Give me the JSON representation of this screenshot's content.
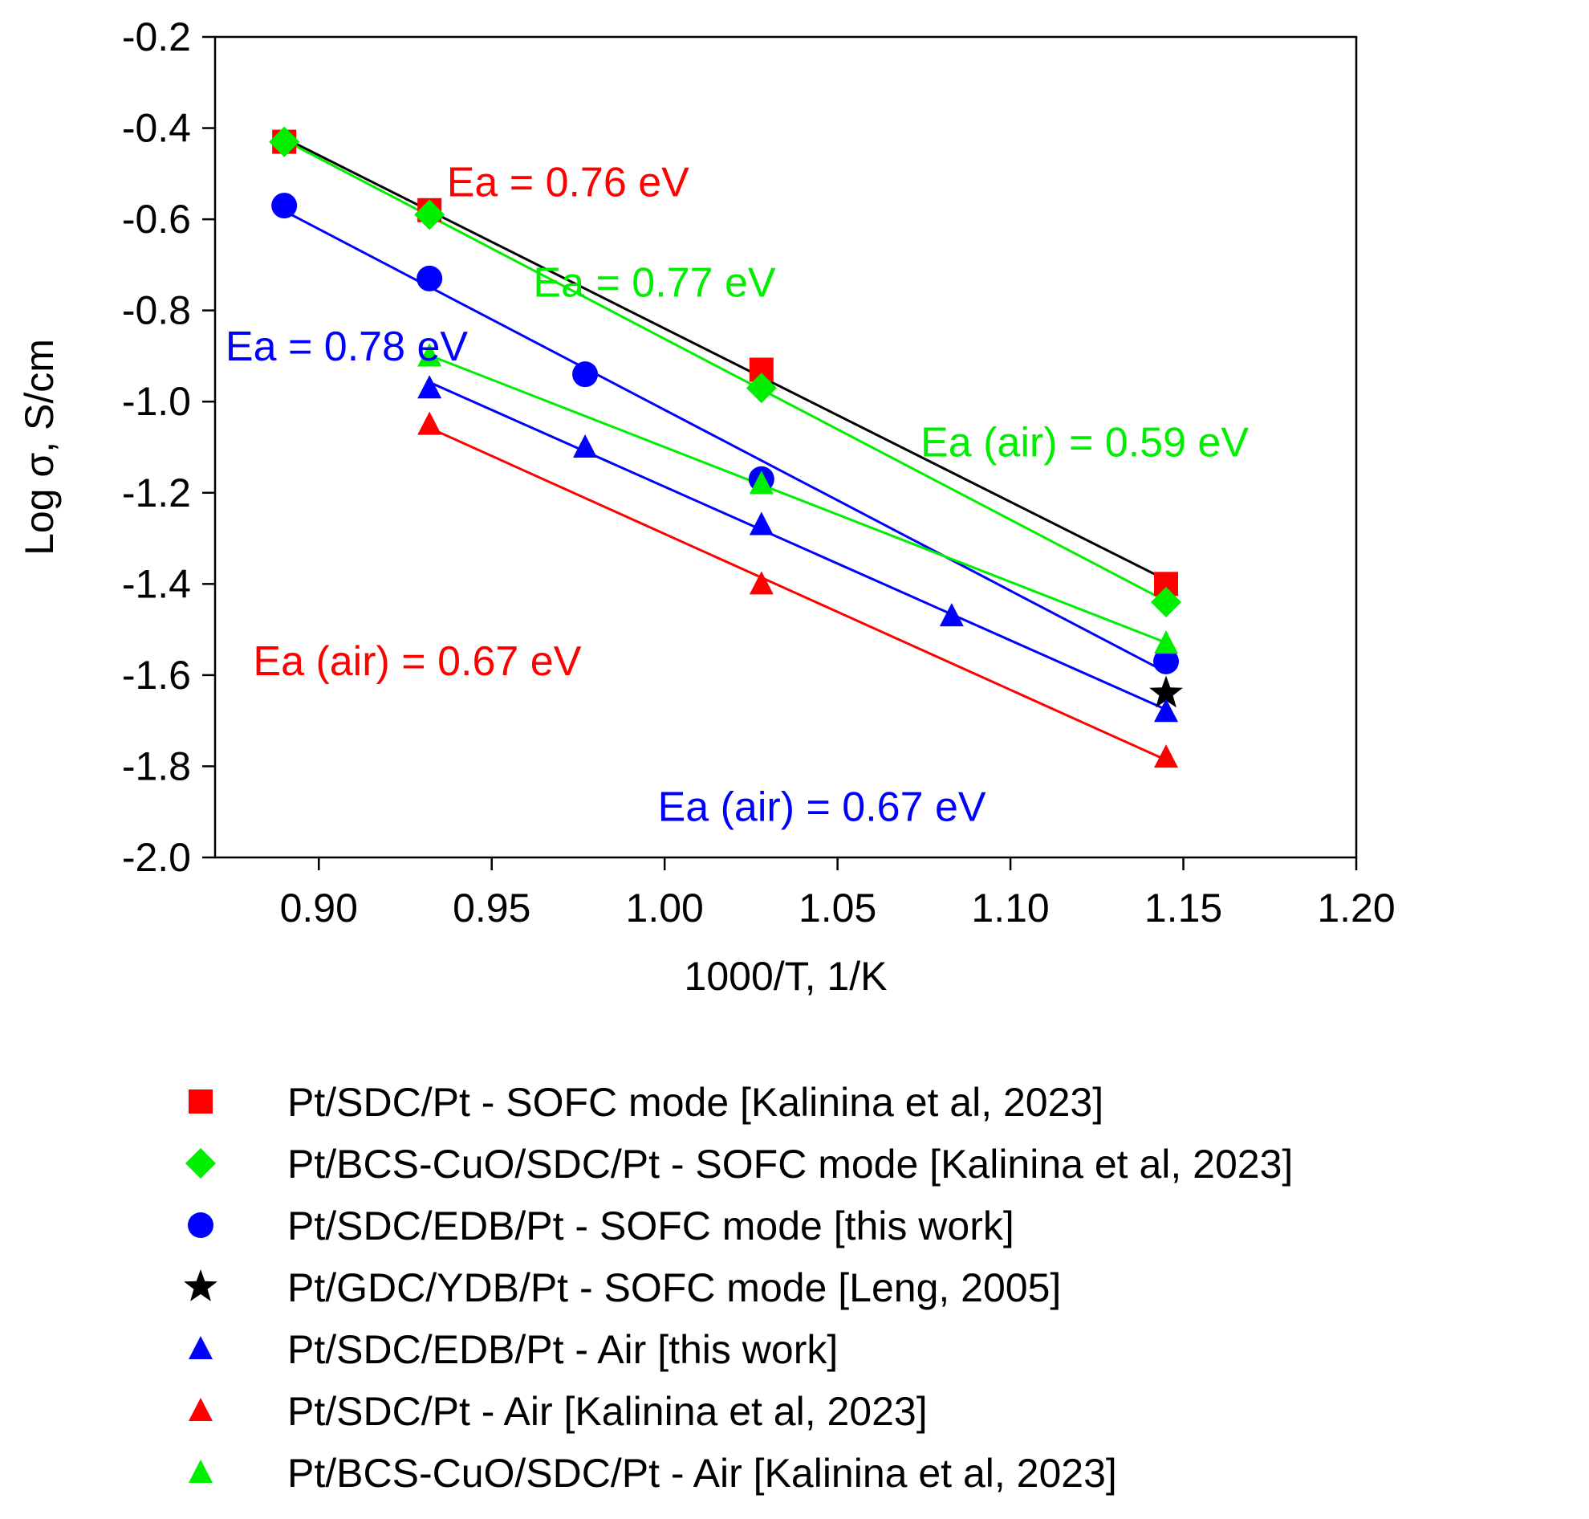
{
  "chart_data": {
    "type": "scatter",
    "xlabel": "1000/T, 1/K",
    "ylabel": "Log σ, S/cm",
    "xlim": [
      0.87,
      1.2
    ],
    "ylim": [
      -2.0,
      -0.2
    ],
    "x_ticks": [
      "0.90",
      "0.95",
      "1.00",
      "1.05",
      "1.10",
      "1.15",
      "1.20"
    ],
    "y_ticks": [
      "-2.0",
      "-1.8",
      "-1.6",
      "-1.4",
      "-1.2",
      "-1.0",
      "-0.8",
      "-0.6",
      "-0.4",
      "-0.2"
    ],
    "grid": false,
    "legend_position": "bottom",
    "series": [
      {
        "name": "Pt/SDC/Pt - SOFC mode [Kalinina et al, 2023]",
        "marker": "square",
        "color": "#ff0000",
        "x": [
          0.89,
          0.932,
          1.028,
          1.145
        ],
        "y": [
          -0.43,
          -0.58,
          -0.93,
          -1.4
        ],
        "fit": true,
        "fit_color": "#000000"
      },
      {
        "name": "Pt/BCS-CuO/SDC/Pt - SOFC mode [Kalinina et al, 2023]",
        "marker": "diamond",
        "color": "#00ee00",
        "x": [
          0.89,
          0.932,
          1.028,
          1.145
        ],
        "y": [
          -0.43,
          -0.59,
          -0.97,
          -1.44
        ],
        "fit": true,
        "fit_color": "#00ee00"
      },
      {
        "name": "Pt/SDC/EDB/Pt - SOFC mode [this work]",
        "marker": "circle",
        "color": "#0000ff",
        "x": [
          0.89,
          0.932,
          0.977,
          1.028,
          1.145
        ],
        "y": [
          -0.57,
          -0.73,
          -0.94,
          -1.17,
          -1.57
        ],
        "fit": true,
        "fit_color": "#0000ff"
      },
      {
        "name": "Pt/GDC/YDB/Pt - SOFC mode [Leng, 2005]",
        "marker": "star",
        "color": "#000000",
        "x": [
          1.145
        ],
        "y": [
          -1.64
        ],
        "fit": false
      },
      {
        "name": "Pt/SDC/EDB/Pt - Air [this work]",
        "marker": "triangle",
        "color": "#0000ff",
        "x": [
          0.932,
          0.977,
          1.028,
          1.083,
          1.145
        ],
        "y": [
          -0.97,
          -1.1,
          -1.27,
          -1.47,
          -1.68
        ],
        "fit": true,
        "fit_color": "#0000ff"
      },
      {
        "name": "Pt/SDC/Pt - Air [Kalinina et al, 2023]",
        "marker": "triangle",
        "color": "#ff0000",
        "x": [
          0.932,
          1.028,
          1.145
        ],
        "y": [
          -1.05,
          -1.4,
          -1.78
        ],
        "fit": true,
        "fit_color": "#ff0000"
      },
      {
        "name": "Pt/BCS-CuO/SDC/Pt - Air [Kalinina et al, 2023]",
        "marker": "triangle",
        "color": "#00ee00",
        "x": [
          0.932,
          1.028,
          1.145
        ],
        "y": [
          -0.9,
          -1.18,
          -1.53
        ],
        "fit": true,
        "fit_color": "#00ee00"
      }
    ],
    "annotations": [
      {
        "text": "Ea = 0.76 eV",
        "color": "#ff0000",
        "x": 0.937,
        "y": -0.55
      },
      {
        "text": "Ea = 0.77 eV",
        "color": "#00ee00",
        "x": 0.962,
        "y": -0.77
      },
      {
        "text": "Ea = 0.78 eV",
        "color": "#0000ff",
        "x": 0.873,
        "y": -0.91
      },
      {
        "text": "Ea (air) = 0.59 eV",
        "color": "#00ee00",
        "x": 1.074,
        "y": -1.12
      },
      {
        "text": "Ea (air) = 0.67 eV",
        "color": "#ff0000",
        "x": 0.881,
        "y": -1.6
      },
      {
        "text": "Ea (air) = 0.67 eV",
        "color": "#0000ff",
        "x": 0.998,
        "y": -1.92
      }
    ]
  }
}
